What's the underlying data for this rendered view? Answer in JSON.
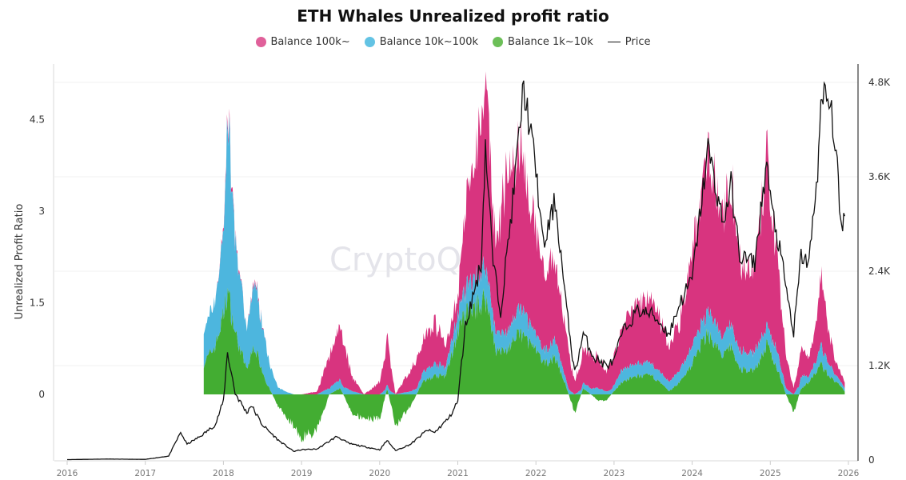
{
  "chart_data": {
    "type": "area",
    "title": "ETH Whales Unrealized profit ratio",
    "ylabel": "Unrealized Profit Ratio",
    "y2label": "",
    "ylim": [
      -1.07,
      5.4
    ],
    "y2lim": [
      0,
      5200
    ],
    "xlim": [
      "2016-01-01",
      "2026-01-01"
    ],
    "yticks": [
      "0",
      "1.5",
      "3",
      "4.5"
    ],
    "ytick_values": [
      0,
      1.5,
      3,
      4.5
    ],
    "y2ticks": [
      "0",
      "1.2K",
      "2.4K",
      "3.6K",
      "4.8K"
    ],
    "y2tick_values": [
      0,
      1200,
      2400,
      3600,
      4800
    ],
    "xticks": [
      "2016",
      "2017",
      "2018",
      "2019",
      "2020",
      "2021",
      "2022",
      "2023",
      "2024",
      "2025",
      "2026"
    ],
    "grid": true,
    "stacked": true,
    "legend_position": "top",
    "watermark": "CryptoQuant",
    "colors": {
      "balance_100k": "#d8347f",
      "balance_10k_100k": "#4db6de",
      "balance_1k_10k": "#43ad32",
      "price": "#111111"
    },
    "series_names": [
      "Balance 100k~",
      "Balance 10k~100k",
      "Balance 1k~10k",
      "Price"
    ],
    "ratio_columns": [
      "date",
      "Balance 1k~10k",
      "Balance 10k~100k",
      "Balance 100k~"
    ],
    "ratio_series": [
      [
        "2017-10-01",
        0.5,
        0.5,
        0
      ],
      [
        "2017-11-25",
        0.8,
        0.8,
        0
      ],
      [
        "2018-01-01",
        1.3,
        1.3,
        0.05
      ],
      [
        "2018-01-20",
        1.7,
        2.9,
        0.1
      ],
      [
        "2018-02-25",
        1.0,
        1.5,
        0.05
      ],
      [
        "2018-04-20",
        0.4,
        0.6,
        0
      ],
      [
        "2018-05-25",
        0.8,
        1.1,
        0.05
      ],
      [
        "2018-07-20",
        0.2,
        0.6,
        0
      ],
      [
        "2018-09-15",
        -0.2,
        0.1,
        0
      ],
      [
        "2018-11-25",
        -0.5,
        0,
        0
      ],
      [
        "2019-01-01",
        -0.7,
        0,
        0
      ],
      [
        "2019-03-15",
        -0.6,
        0,
        0.05
      ],
      [
        "2019-05-10",
        0,
        0.1,
        0.5
      ],
      [
        "2019-07-01",
        0.1,
        0.15,
        0.95
      ],
      [
        "2019-08-25",
        -0.3,
        0.05,
        0.25
      ],
      [
        "2019-10-20",
        -0.4,
        0,
        0
      ],
      [
        "2020-01-01",
        -0.4,
        0,
        0.2
      ],
      [
        "2020-02-05",
        0.1,
        0.1,
        0.8
      ],
      [
        "2020-03-15",
        -0.5,
        0,
        0
      ],
      [
        "2020-05-25",
        -0.2,
        0.05,
        0.35
      ],
      [
        "2020-07-20",
        0.2,
        0.15,
        0.55
      ],
      [
        "2020-09-15",
        0.3,
        0.2,
        0.7
      ],
      [
        "2020-11-05",
        0.3,
        0.15,
        0.35
      ],
      [
        "2021-01-01",
        1.0,
        0.3,
        0.3
      ],
      [
        "2021-02-05",
        1.3,
        0.4,
        1.3
      ],
      [
        "2021-04-20",
        1.5,
        0.5,
        2.5
      ],
      [
        "2021-05-10",
        1.6,
        0.5,
        3.0
      ],
      [
        "2021-07-01",
        0.7,
        0.3,
        1.3
      ],
      [
        "2021-08-10",
        0.7,
        0.3,
        2.5
      ],
      [
        "2021-10-20",
        1.0,
        0.4,
        2.6
      ],
      [
        "2021-12-15",
        0.8,
        0.3,
        1.9
      ],
      [
        "2022-02-05",
        0.5,
        0.2,
        1.3
      ],
      [
        "2022-04-01",
        0.6,
        0.3,
        1.3
      ],
      [
        "2022-05-25",
        0.1,
        0.1,
        0.7
      ],
      [
        "2022-07-01",
        -0.3,
        0,
        0.2
      ],
      [
        "2022-08-10",
        0.1,
        0.1,
        0.6
      ],
      [
        "2022-10-20",
        -0.1,
        0.1,
        0.5
      ],
      [
        "2022-11-25",
        -0.1,
        0.05,
        0.35
      ],
      [
        "2023-01-01",
        0.05,
        0.1,
        0.45
      ],
      [
        "2023-02-05",
        0.2,
        0.2,
        0.7
      ],
      [
        "2023-04-20",
        0.3,
        0.2,
        1.0
      ],
      [
        "2023-07-01",
        0.3,
        0.2,
        1.0
      ],
      [
        "2023-09-15",
        0.05,
        0.15,
        0.6
      ],
      [
        "2023-11-05",
        0.2,
        0.2,
        0.8
      ],
      [
        "2024-01-01",
        0.5,
        0.3,
        1.5
      ],
      [
        "2024-02-25",
        0.9,
        0.3,
        2.3
      ],
      [
        "2024-03-15",
        1.0,
        0.4,
        2.7
      ],
      [
        "2024-05-25",
        0.6,
        0.3,
        1.9
      ],
      [
        "2024-07-01",
        0.8,
        0.4,
        2.4
      ],
      [
        "2024-08-10",
        0.4,
        0.3,
        1.5
      ],
      [
        "2024-10-20",
        0.4,
        0.3,
        1.3
      ],
      [
        "2024-12-15",
        0.8,
        0.3,
        2.7
      ],
      [
        "2025-02-05",
        0.4,
        0.3,
        1.5
      ],
      [
        "2025-03-15",
        0,
        0.1,
        0.5
      ],
      [
        "2025-04-20",
        -0.3,
        0,
        0.1
      ],
      [
        "2025-05-25",
        0.1,
        0.2,
        0.5
      ],
      [
        "2025-07-01",
        0.2,
        0.1,
        0.3
      ],
      [
        "2025-08-10",
        0.4,
        0.2,
        0.7
      ],
      [
        "2025-08-25",
        0.5,
        0.3,
        1.1
      ],
      [
        "2025-10-01",
        0.3,
        0.2,
        0.5
      ],
      [
        "2025-11-05",
        0.2,
        0.1,
        0.2
      ],
      [
        "2025-12-15",
        0.05,
        0.05,
        0.1
      ]
    ],
    "price_series": [
      [
        "2016-01-01",
        5
      ],
      [
        "2016-07-01",
        12
      ],
      [
        "2017-01-01",
        8
      ],
      [
        "2017-04-20",
        50
      ],
      [
        "2017-06-15",
        350
      ],
      [
        "2017-07-15",
        200
      ],
      [
        "2017-09-15",
        300
      ],
      [
        "2017-11-25",
        450
      ],
      [
        "2018-01-01",
        750
      ],
      [
        "2018-01-20",
        1370
      ],
      [
        "2018-02-25",
        850
      ],
      [
        "2018-04-20",
        600
      ],
      [
        "2018-05-10",
        700
      ],
      [
        "2018-07-01",
        450
      ],
      [
        "2018-09-15",
        250
      ],
      [
        "2018-11-25",
        110
      ],
      [
        "2019-01-01",
        130
      ],
      [
        "2019-03-15",
        140
      ],
      [
        "2019-06-15",
        300
      ],
      [
        "2019-08-10",
        210
      ],
      [
        "2019-10-20",
        170
      ],
      [
        "2020-01-01",
        130
      ],
      [
        "2020-02-05",
        250
      ],
      [
        "2020-03-15",
        120
      ],
      [
        "2020-05-25",
        200
      ],
      [
        "2020-08-10",
        380
      ],
      [
        "2020-09-15",
        350
      ],
      [
        "2020-11-25",
        550
      ],
      [
        "2021-01-01",
        750
      ],
      [
        "2021-02-05",
        1700
      ],
      [
        "2021-04-20",
        2500
      ],
      [
        "2021-05-10",
        4000
      ],
      [
        "2021-06-15",
        2500
      ],
      [
        "2021-07-20",
        1900
      ],
      [
        "2021-09-15",
        3300
      ],
      [
        "2021-11-05",
        4750
      ],
      [
        "2022-01-01",
        3700
      ],
      [
        "2022-02-05",
        2700
      ],
      [
        "2022-04-01",
        3300
      ],
      [
        "2022-05-25",
        1900
      ],
      [
        "2022-07-01",
        1100
      ],
      [
        "2022-08-10",
        1600
      ],
      [
        "2022-10-01",
        1300
      ],
      [
        "2022-11-25",
        1200
      ],
      [
        "2023-01-01",
        1250
      ],
      [
        "2023-02-05",
        1600
      ],
      [
        "2023-04-20",
        1900
      ],
      [
        "2023-07-01",
        1850
      ],
      [
        "2023-09-15",
        1600
      ],
      [
        "2023-11-05",
        2000
      ],
      [
        "2024-01-01",
        2300
      ],
      [
        "2024-03-15",
        3970
      ],
      [
        "2024-05-25",
        3000
      ],
      [
        "2024-07-01",
        3500
      ],
      [
        "2024-08-10",
        2600
      ],
      [
        "2024-10-20",
        2500
      ],
      [
        "2024-12-15",
        3800
      ],
      [
        "2025-01-01",
        3300
      ],
      [
        "2025-02-25",
        2500
      ],
      [
        "2025-04-20",
        1600
      ],
      [
        "2025-05-25",
        2600
      ],
      [
        "2025-07-01",
        2500
      ],
      [
        "2025-08-10",
        3700
      ],
      [
        "2025-08-25",
        4400
      ],
      [
        "2025-09-15",
        4700
      ],
      [
        "2025-10-20",
        4300
      ],
      [
        "2025-11-05",
        3900
      ],
      [
        "2025-11-25",
        3000
      ],
      [
        "2025-12-15",
        3100
      ]
    ]
  }
}
